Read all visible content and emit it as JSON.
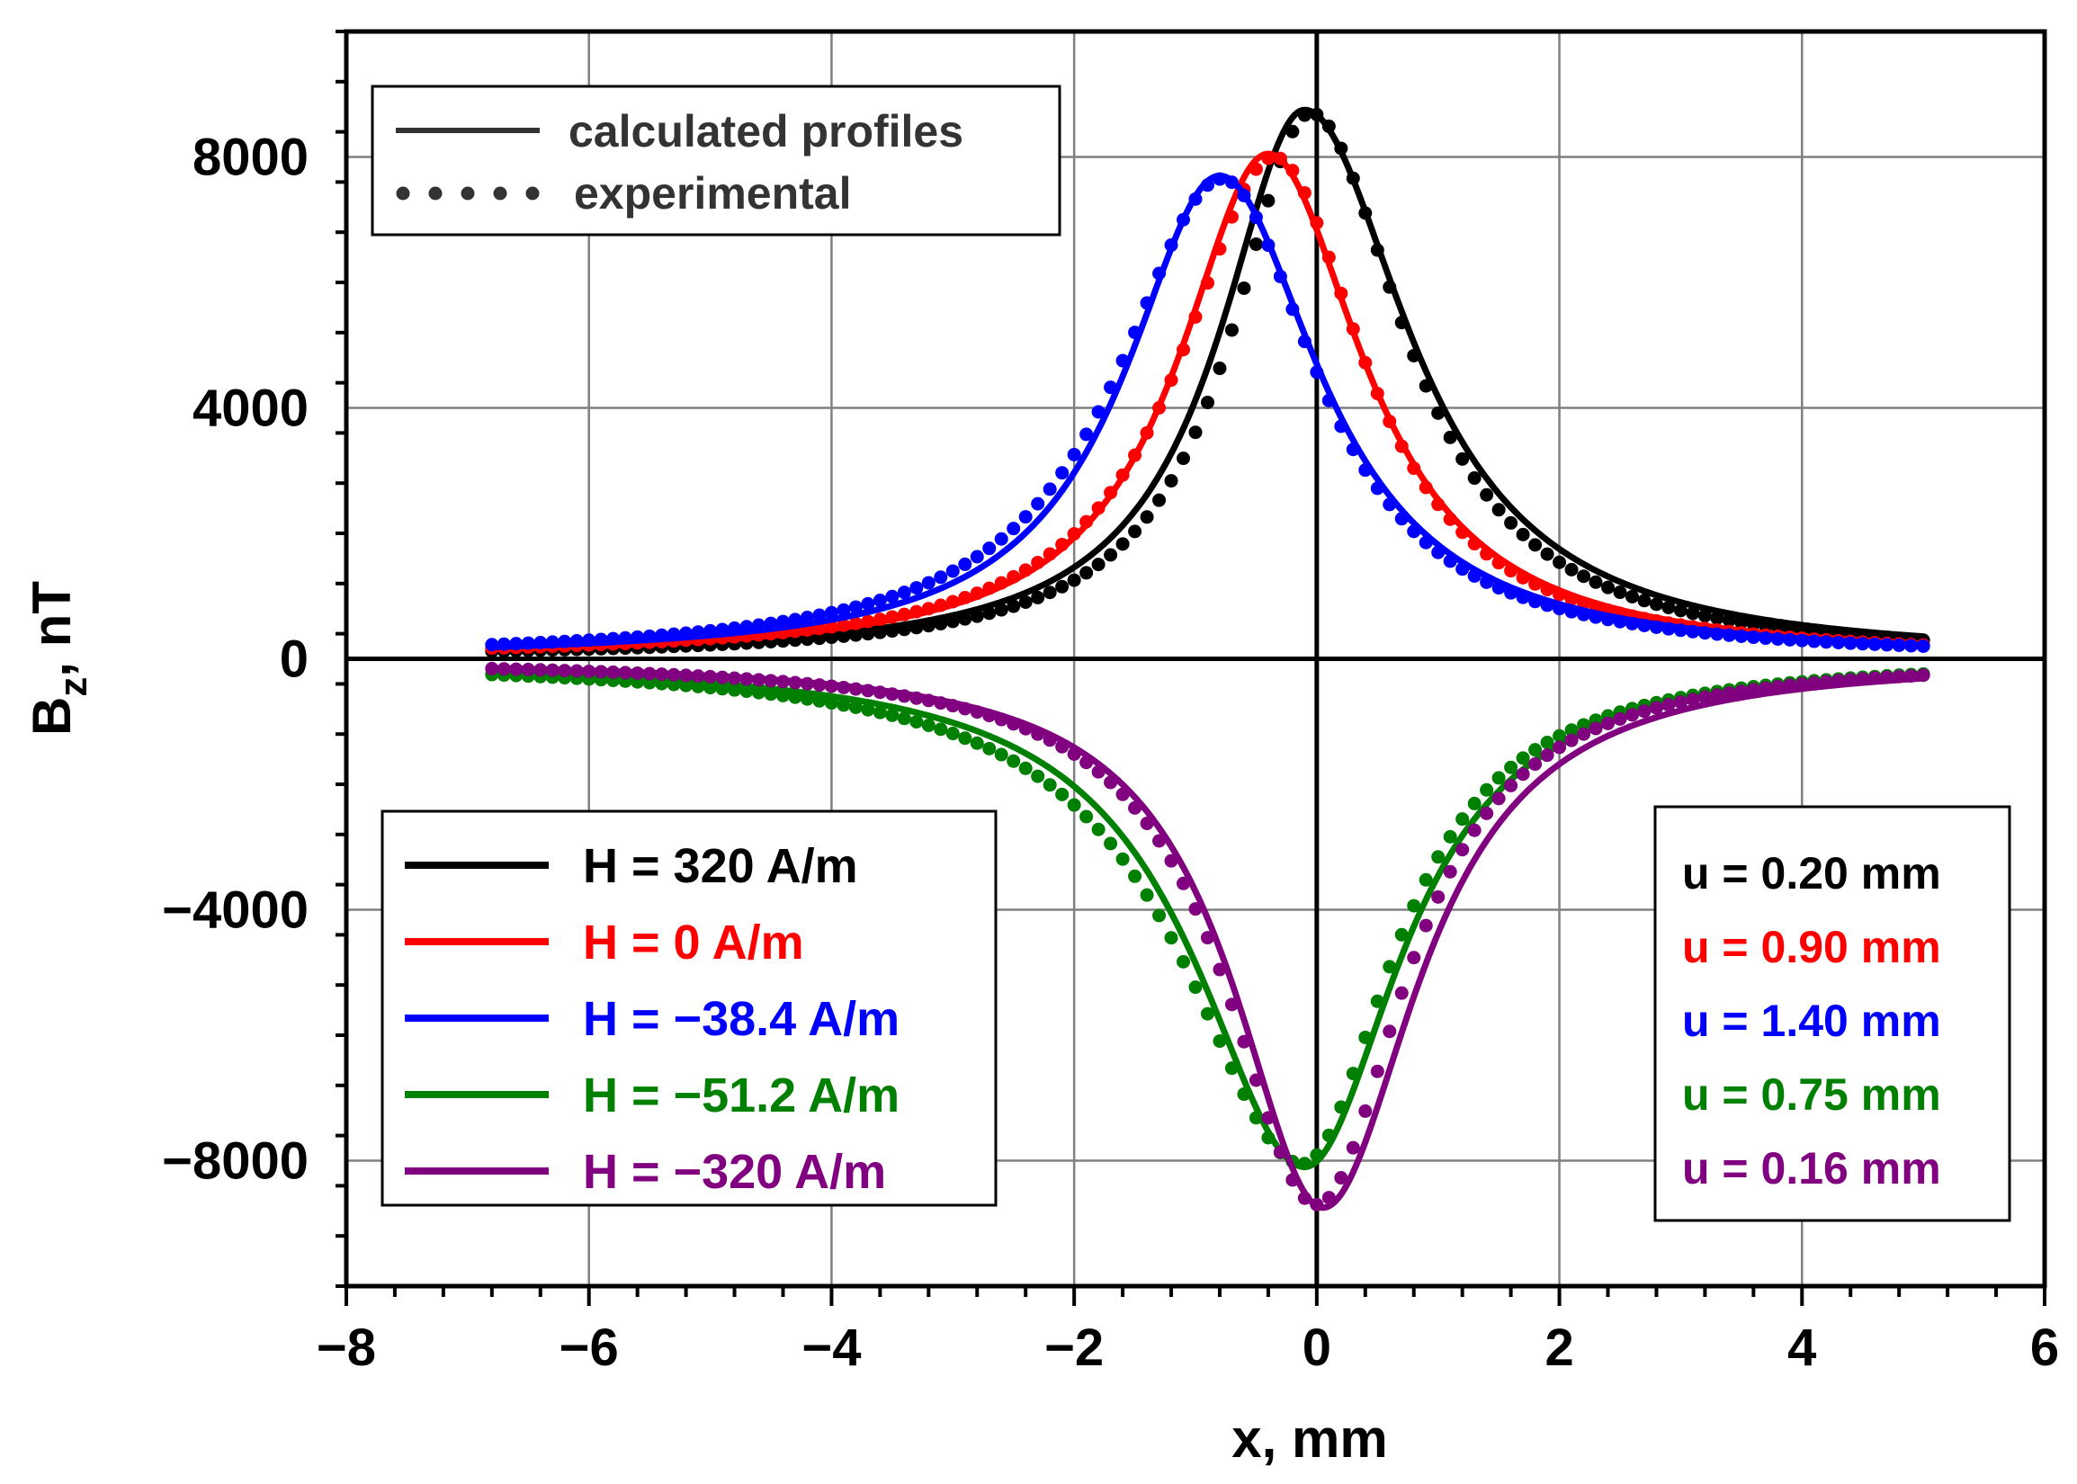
{
  "chart_data": {
    "type": "line",
    "title": "",
    "xlabel": "x, mm",
    "ylabel_main": "B",
    "ylabel_sub": "z",
    "ylabel_rest": ", nT",
    "xlim": [
      -8,
      6
    ],
    "ylim": [
      -10000,
      10000
    ],
    "x_ticks": [
      -8,
      -6,
      -4,
      -2,
      0,
      2,
      4,
      6
    ],
    "x_tick_labels": [
      "−8",
      "−6",
      "−4",
      "−2",
      "0",
      "2",
      "4",
      "6"
    ],
    "y_ticks": [
      -8000,
      -4000,
      0,
      4000,
      8000
    ],
    "y_tick_labels": [
      "−8000",
      "−4000",
      "0",
      "4000",
      "8000"
    ],
    "grid": true,
    "style_legend": {
      "calculated": "calculated profiles",
      "experimental": "experimental"
    },
    "x_range": [
      -6.8,
      5.0
    ],
    "series": [
      {
        "name": "H = 320 A/m",
        "u_label": "u = 0.20 mm",
        "color": "#000000",
        "amplitude": 8750,
        "center": -0.1,
        "shape": "peak",
        "calc_gamma_left": 0.85,
        "calc_gamma_right": 1.05,
        "exp_amplitude": 8700,
        "exp_center": -0.05,
        "exp_gamma_left": 0.8,
        "exp_gamma_right": 0.95
      },
      {
        "name": "H = 0 A/m",
        "u_label": "u = 0.90 mm",
        "color": "#ff0000",
        "amplitude": 8050,
        "center": -0.4,
        "shape": "peak",
        "calc_gamma_left": 0.9,
        "calc_gamma_right": 0.95,
        "exp_amplitude": 8000,
        "exp_center": -0.35,
        "exp_gamma_left": 0.95,
        "exp_gamma_right": 0.9
      },
      {
        "name": "H = −38.4 A/m",
        "u_label": "u = 1.40 mm",
        "color": "#0000ff",
        "amplitude": 7700,
        "center": -0.8,
        "shape": "peak",
        "calc_gamma_left": 0.95,
        "calc_gamma_right": 1.0,
        "exp_amplitude": 7650,
        "exp_center": -0.78,
        "exp_gamma_left": 1.05,
        "exp_gamma_right": 0.95
      },
      {
        "name": "H = −51.2 A/m",
        "u_label": "u = 0.75 mm",
        "color": "#008000",
        "amplitude": -8100,
        "center": -0.1,
        "shape": "valley",
        "calc_gamma_left": 1.1,
        "calc_gamma_right": 0.95,
        "exp_amplitude": -8050,
        "exp_center": -0.12,
        "exp_gamma_left": 1.2,
        "exp_gamma_right": 0.9
      },
      {
        "name": "H = −320 A/m",
        "u_label": "u = 0.16 mm",
        "color": "#800080",
        "amplitude": -8750,
        "center": 0.05,
        "shape": "valley",
        "calc_gamma_left": 0.9,
        "calc_gamma_right": 0.95,
        "exp_amplitude": -8700,
        "exp_center": 0.0,
        "exp_gamma_left": 0.92,
        "exp_gamma_right": 0.88
      }
    ]
  }
}
